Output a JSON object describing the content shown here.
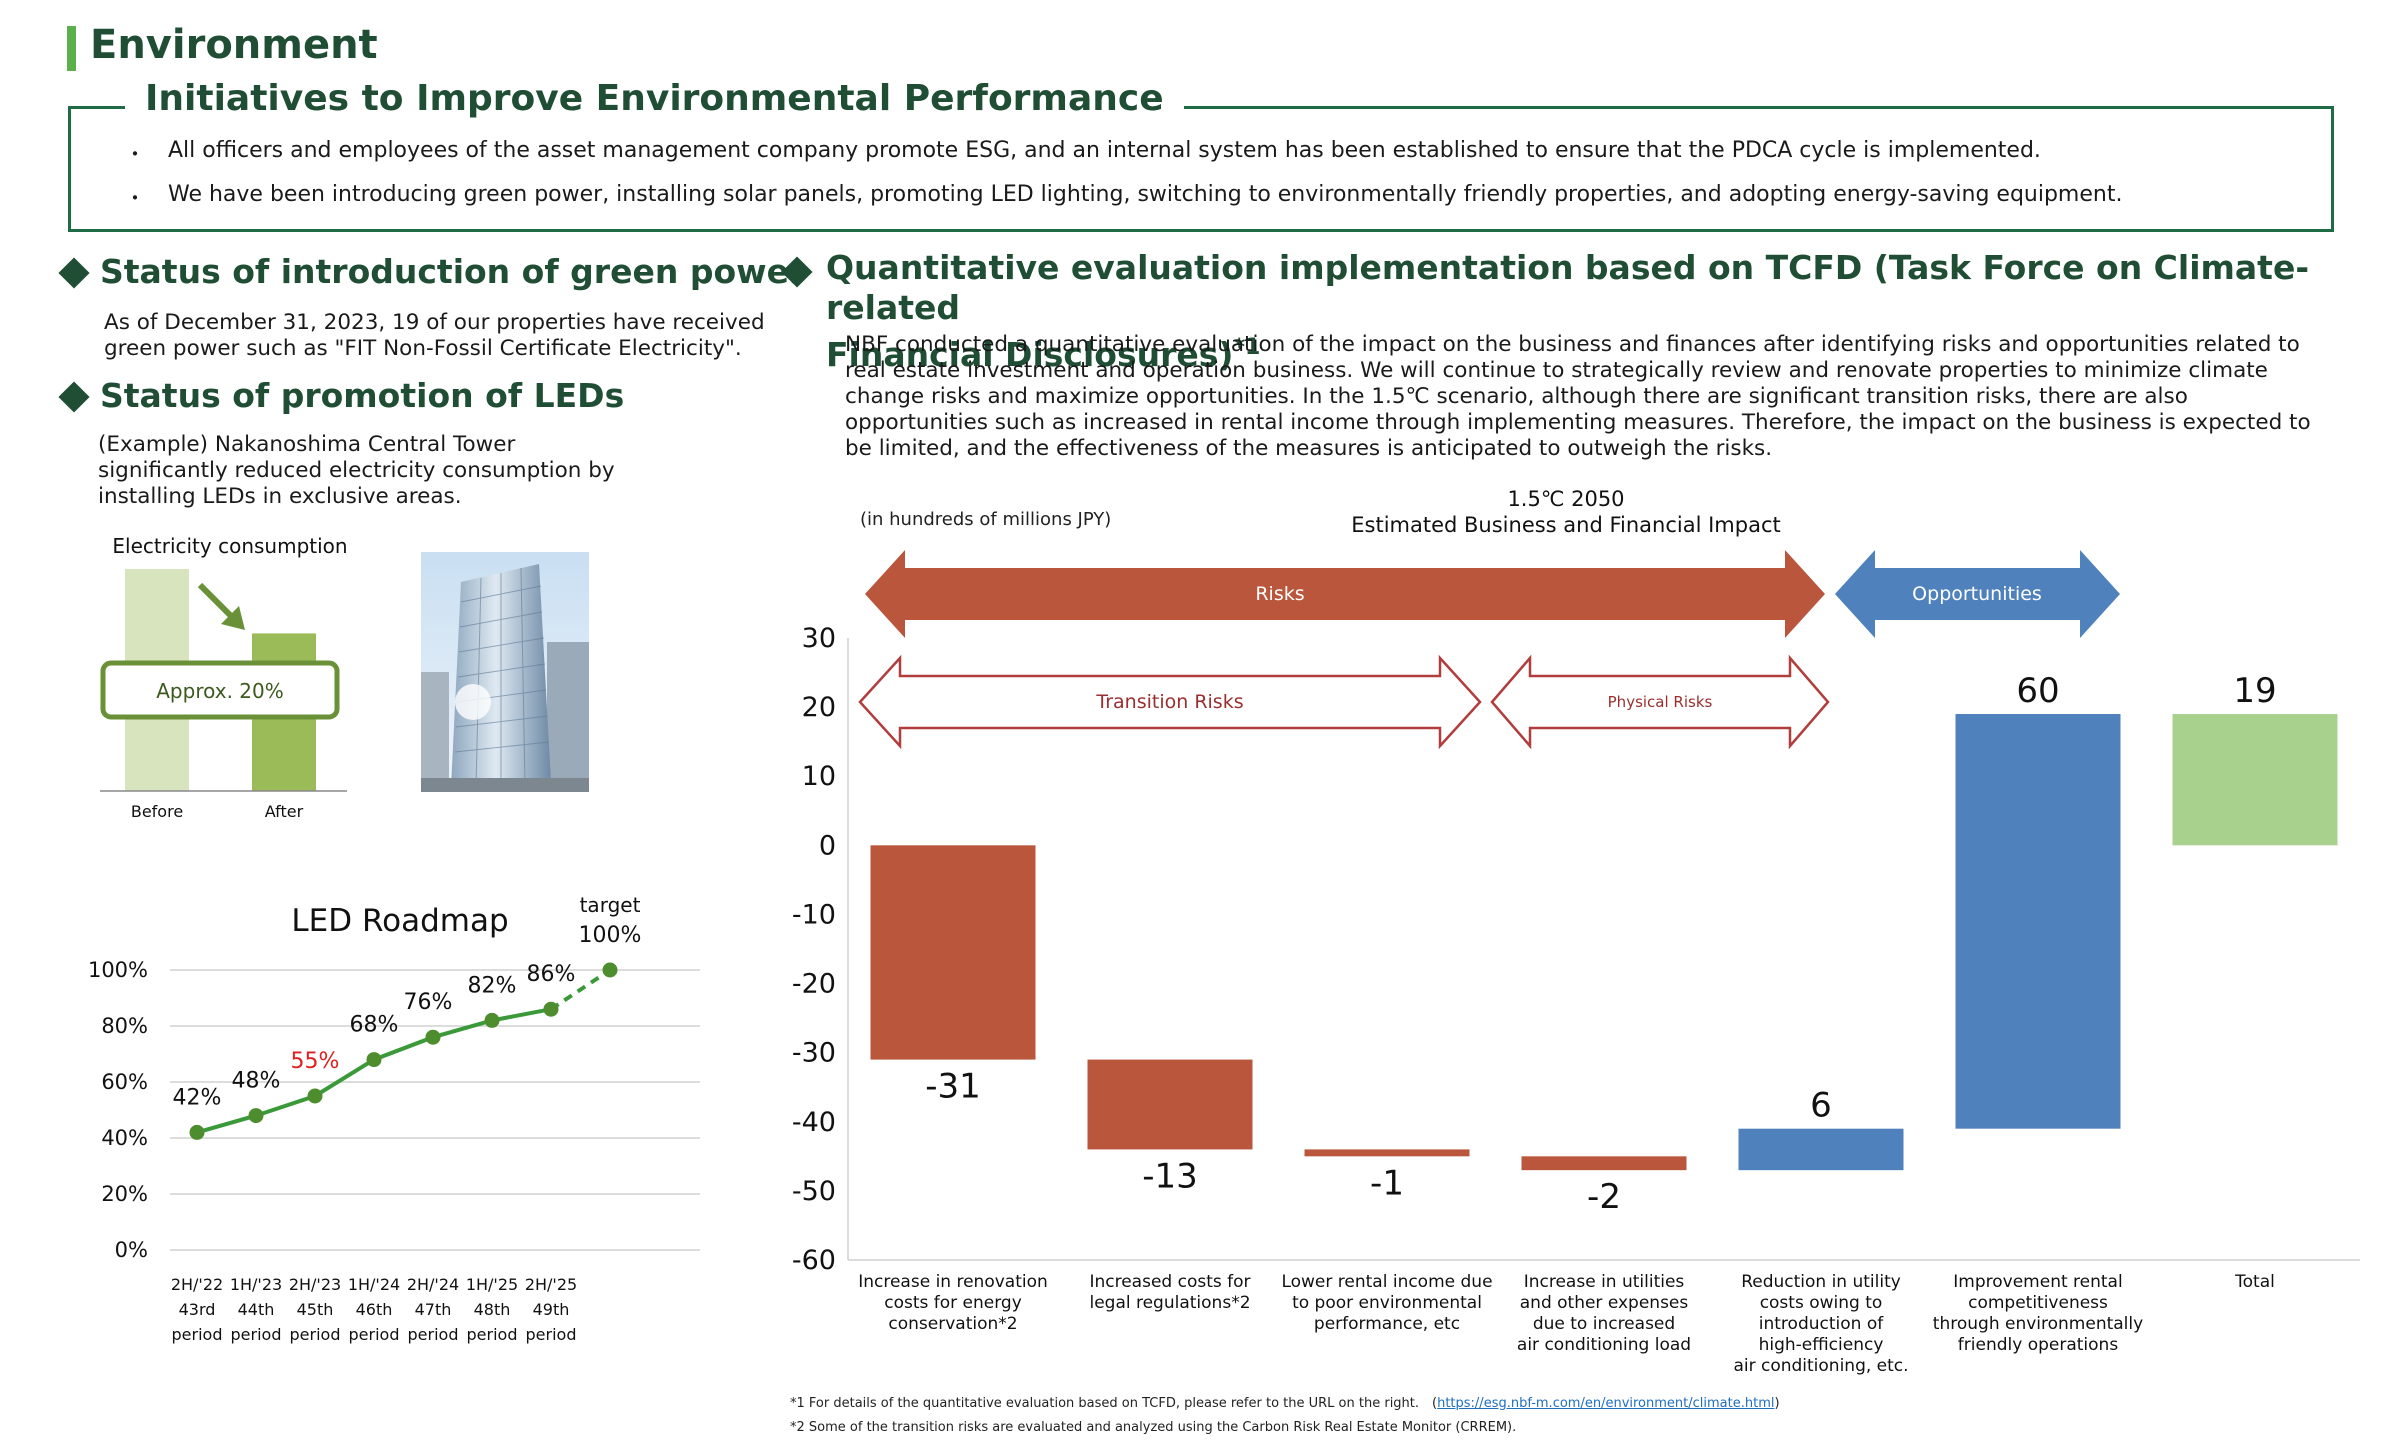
{
  "header": {
    "section_title": "Environment",
    "initiatives_title": "Initiatives to Improve Environmental Performance",
    "bullets": [
      "All officers and employees of the asset management company promote ESG, and an internal system has been established to ensure that the PDCA cycle is implemented.",
      "We have been introducing green power, installing solar panels, promoting LED lighting, switching to environmentally friendly properties, and adopting energy-saving equipment."
    ],
    "bullet_glyph": "・"
  },
  "green_power": {
    "title": "Status of introduction of green power",
    "text_lines": [
      "As of December 31, 2023, 19 of our properties have received",
      "green power such as \"FIT Non-Fossil Certificate Electricity\"."
    ]
  },
  "leds": {
    "title": "Status of promotion of LEDs",
    "text_lines": [
      "(Example)   Nakanoshima Central Tower",
      "significantly  reduced electricity consumption by",
      "installing LEDs in exclusive areas."
    ],
    "mini_chart": {
      "title": "Electricity consumption",
      "before_label": "Before",
      "after_label": "After",
      "reduction_label": "Approx. 20%",
      "before_value": 100,
      "after_value": 80,
      "colors": {
        "before": "#d7e4bd",
        "after": "#9bbb59",
        "border": "#6a9137"
      }
    }
  },
  "chart_data": [
    {
      "type": "line",
      "title": "LED Roadmap",
      "categories": [
        [
          "2H/'22",
          "43rd",
          "period"
        ],
        [
          "1H/'23",
          "44th",
          "period"
        ],
        [
          "2H/'23",
          "45th",
          "period"
        ],
        [
          "1H/'24",
          "46th",
          "period"
        ],
        [
          "2H/'24",
          "47th",
          "period"
        ],
        [
          "1H/'25",
          "48th",
          "period"
        ],
        [
          "2H/'25",
          "49th",
          "period"
        ],
        [
          "",
          "",
          ""
        ]
      ],
      "values": [
        42,
        48,
        55,
        68,
        76,
        82,
        86,
        100
      ],
      "value_labels": [
        "42%",
        "48%",
        "55%",
        "68%",
        "76%",
        "82%",
        "86%",
        "100%"
      ],
      "highlight_label_index": 2,
      "target_label": "target",
      "target_index": 7,
      "dashed_from_index": 6,
      "yticks": [
        "0%",
        "20%",
        "40%",
        "60%",
        "80%",
        "100%"
      ],
      "ylim": [
        0,
        100
      ],
      "colors": {
        "line": "#3a9a3a",
        "marker": "#4e8d2d",
        "highlight": "#e02020",
        "grid": "#d0d0d0"
      }
    },
    {
      "type": "bar",
      "title_lines": [
        "1.5℃ 2050",
        "Estimated Business and Financial Impact"
      ],
      "unit_note": "(in hundreds of millions JPY)",
      "categories": [
        [
          "Increase in renovation",
          "costs for energy",
          "conservation*2"
        ],
        [
          "Increased costs for",
          "legal regulations*2"
        ],
        [
          "Lower rental income due",
          "to poor environmental",
          "performance, etc"
        ],
        [
          "Increase in utilities",
          "and other expenses",
          "due to increased",
          "air conditioning load"
        ],
        [
          "Reduction in utility",
          "costs owing to",
          "introduction of",
          "high-efficiency",
          "air conditioning, etc."
        ],
        [
          "Improvement rental",
          "competitiveness",
          "through environmentally",
          "friendly operations"
        ],
        [
          "Total"
        ]
      ],
      "values": [
        -31,
        -13,
        -1,
        -2,
        6,
        60,
        19
      ],
      "value_labels": [
        "-31",
        "-13",
        "-1",
        "-2",
        "6",
        "60",
        "19"
      ],
      "bar_ranges": [
        [
          0,
          -31
        ],
        [
          -31,
          -44
        ],
        [
          -44,
          -45
        ],
        [
          -45,
          -47
        ],
        [
          -47,
          -41
        ],
        [
          -41,
          19
        ],
        [
          0,
          19
        ]
      ],
      "yticks": [
        30,
        20,
        10,
        0,
        -10,
        -20,
        -30,
        -40,
        -50,
        -60
      ],
      "ylim": [
        -60,
        30
      ],
      "risks_label": "Risks",
      "opportunities_label": "Opportunities",
      "transition_label": "Transition Risks",
      "physical_label": "Physical Risks",
      "colors": {
        "risk": "#b9563c",
        "opportunity": "#4f81bd",
        "total": "#a9d18e",
        "outline": "#b13d3d"
      }
    }
  ],
  "tcfd": {
    "title_line1": "Quantitative evaluation implementation based on TCFD (Task Force on Climate-related",
    "title_line2": "Financial Disclosures)",
    "title_sup": "*1",
    "text_lines": [
      "NBF conducted a quantitative evaluation of the impact on the business and finances after identifying risks and opportunities related to",
      "real estate investment and operation business. We will continue to strategically review and renovate properties to minimize climate",
      "change risks and maximize opportunities. In the 1.5℃ scenario, although there are significant transition risks, there are also",
      "opportunities such as increased in rental income through implementing measures. Therefore, the impact on the business is expected to",
      "be limited, and the effectiveness of the measures is anticipated to outweigh the risks."
    ]
  },
  "footnotes": {
    "note1_text": "*1 For details of the quantitative evaluation based on TCFD, please refer to the URL on the right.　(",
    "note1_url": "https://esg.nbf-m.com/en/environment/climate.html",
    "note1_close": ")",
    "note2": "*2  Some of the transition risks are evaluated and analyzed using the Carbon Risk Real Estate Monitor (CRREM)."
  }
}
